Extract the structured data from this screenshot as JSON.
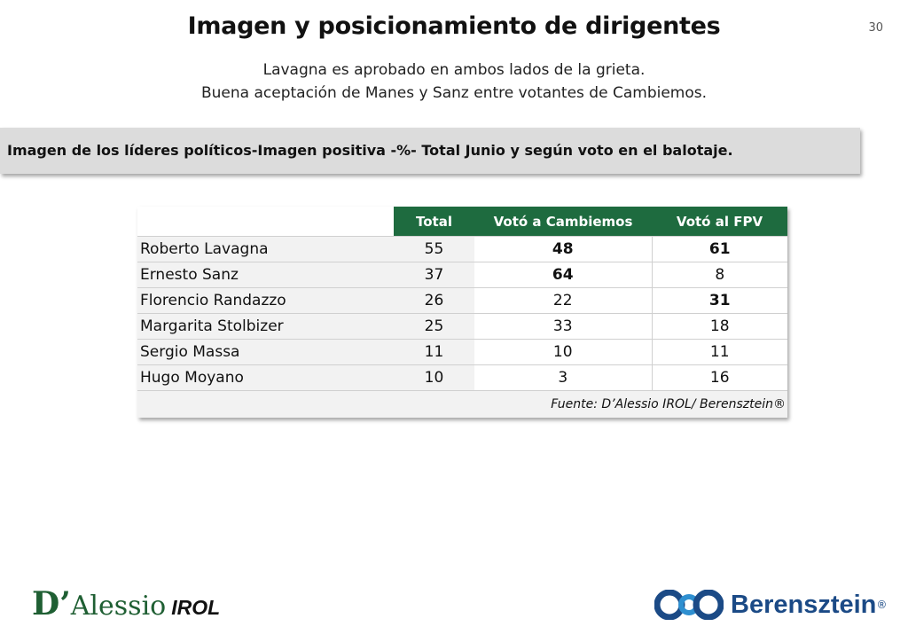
{
  "header": {
    "title": "Imagen y posicionamiento de dirigentes",
    "page_number": "30",
    "subtitle_lines": [
      "Lavagna es aprobado en ambos lados de la grieta.",
      "Buena aceptación de Manes y Sanz entre votantes de Cambiemos."
    ]
  },
  "section": {
    "banner": "Imagen de los líderes políticos-Imagen positiva -%- Total Junio y según voto en el balotaje."
  },
  "table": {
    "columns": [
      "Total",
      "Votó a Cambiemos",
      "Votó al FPV"
    ],
    "rows": [
      {
        "name": "Roberto Lavagna",
        "total": "55",
        "cambiemos": "48",
        "fpv": "61",
        "bold": [
          "cambiemos",
          "fpv"
        ]
      },
      {
        "name": "Ernesto Sanz",
        "total": "37",
        "cambiemos": "64",
        "fpv": "8",
        "bold": [
          "cambiemos"
        ]
      },
      {
        "name": "Florencio Randazzo",
        "total": "26",
        "cambiemos": "22",
        "fpv": "31",
        "bold": [
          "fpv"
        ]
      },
      {
        "name": "Margarita Stolbizer",
        "total": "25",
        "cambiemos": "33",
        "fpv": "18",
        "bold": []
      },
      {
        "name": "Sergio Massa",
        "total": "11",
        "cambiemos": "10",
        "fpv": "11",
        "bold": []
      },
      {
        "name": "Hugo Moyano",
        "total": "10",
        "cambiemos": "3",
        "fpv": "16",
        "bold": []
      }
    ],
    "source": "Fuente: D’Alessio IROL/ Berensztein®"
  },
  "footer": {
    "logo_left_initial": "D’",
    "logo_left_rest": "Alessio",
    "logo_left_suffix": "IROL",
    "logo_right_text": "Berensztein",
    "logo_right_mark": "®"
  },
  "colors": {
    "header_green": "#1e6b3f",
    "banner_gray": "#dcdcdc",
    "logo_green": "#1f5f33",
    "logo_blue": "#1b4a86"
  }
}
